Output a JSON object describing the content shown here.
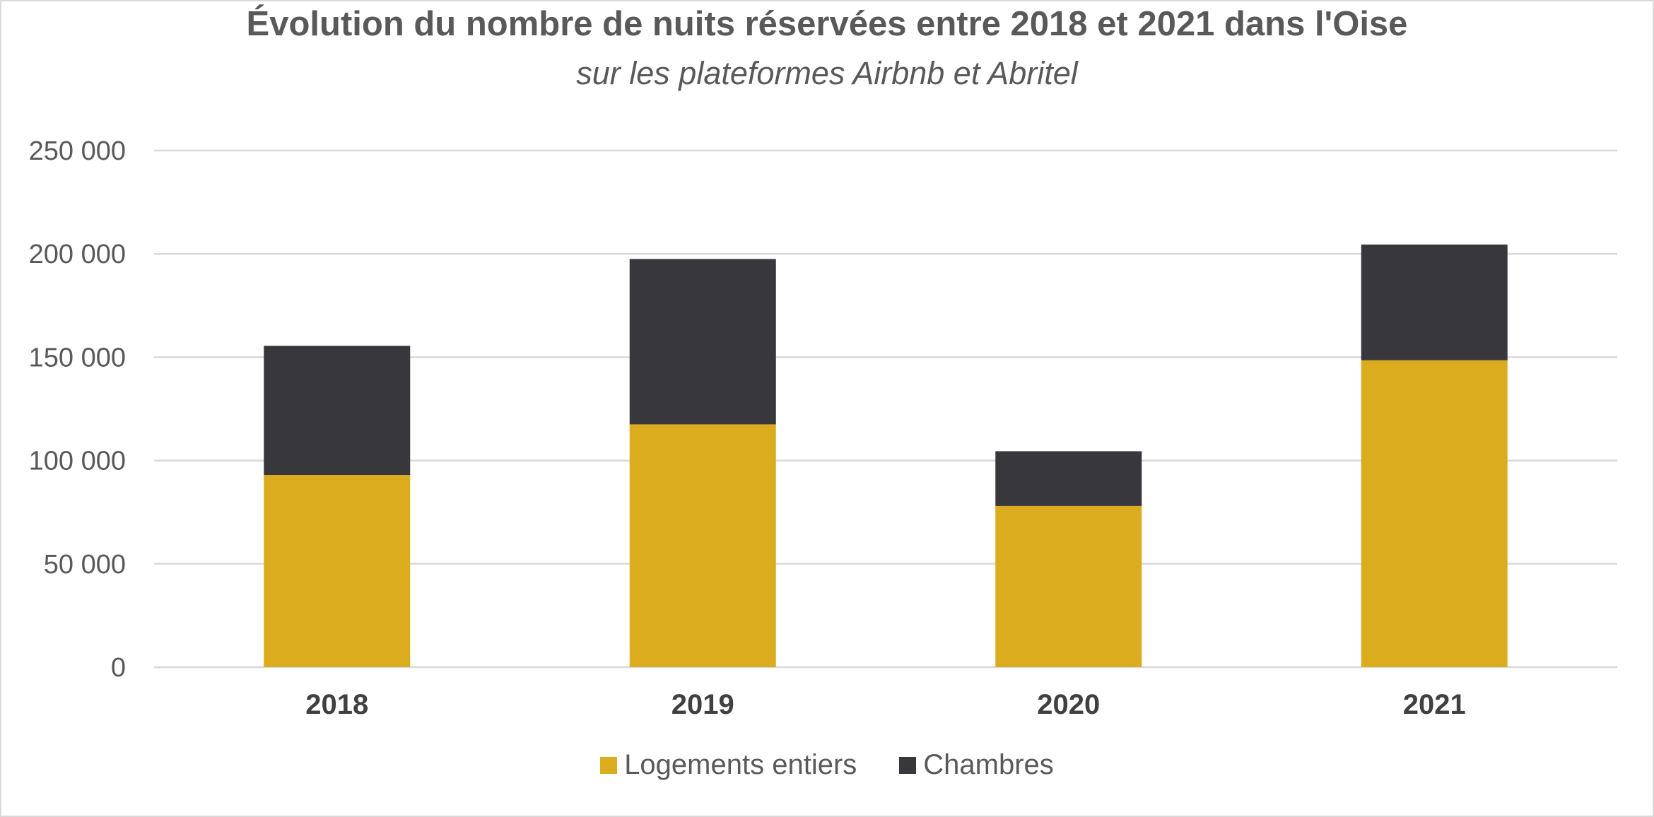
{
  "chart_data": {
    "type": "bar",
    "stacked": true,
    "title": "Évolution du nombre de nuits réservées entre 2018 et 2021 dans l'Oise",
    "subtitle": "sur les plateformes Airbnb et Abritel",
    "categories": [
      "2018",
      "2019",
      "2020",
      "2021"
    ],
    "series": [
      {
        "name": "Logements entiers",
        "values": [
          93000,
          117500,
          78000,
          148500
        ],
        "color": "#dcac1f"
      },
      {
        "name": "Chambres",
        "values": [
          62500,
          80000,
          26500,
          56000
        ],
        "color": "#38373c"
      }
    ],
    "ylim": [
      0,
      250000
    ],
    "yticks": [
      0,
      50000,
      100000,
      150000,
      200000,
      250000
    ],
    "ytick_labels": [
      "0",
      "50 000",
      "100 000",
      "150 000",
      "200 000",
      "250 000"
    ],
    "xlabel": "",
    "ylabel": "",
    "grid": true,
    "legend_position": "bottom"
  }
}
